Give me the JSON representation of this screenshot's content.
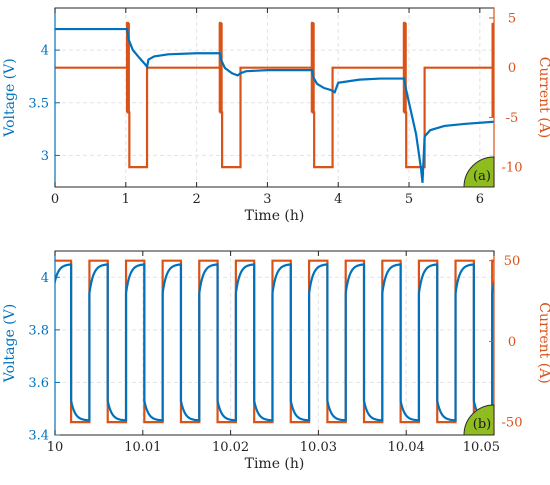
{
  "colors": {
    "voltage": "#0072bd",
    "current": "#d95319",
    "grid": "#e3e3e3",
    "axis": "#262626",
    "badge": "#8fbc1e"
  },
  "chart_data": [
    {
      "type": "line",
      "badge": "(a)",
      "xlabel": "Time (h)",
      "ylabel_left": "Voltage (V)",
      "ylabel_right": "Current (A)",
      "xlim": [
        0,
        6.2
      ],
      "ylim_left": [
        2.7,
        4.4
      ],
      "ylim_right": [
        -12,
        6
      ],
      "xticks": [
        "0",
        "1",
        "2",
        "3",
        "4",
        "5",
        "6"
      ],
      "xtick_values": [
        0,
        1,
        2,
        3,
        4,
        5,
        6
      ],
      "yticks_left": [
        "3",
        "3.5",
        "4"
      ],
      "ytick_values_left": [
        3,
        3.5,
        4
      ],
      "yticks_right": [
        "-10",
        "-5",
        "0",
        "5"
      ],
      "ytick_values_right": [
        -10,
        -5,
        0,
        5
      ],
      "grid": true,
      "series": [
        {
          "axis": "left",
          "x": [
            0,
            1.02,
            1.04,
            1.1,
            1.2,
            1.28,
            1.3,
            1.32,
            1.4,
            1.6,
            2.0,
            2.33,
            2.35,
            2.4,
            2.5,
            2.58,
            2.62,
            2.7,
            3.0,
            3.3,
            3.63,
            3.65,
            3.7,
            3.8,
            3.9,
            3.95,
            4.0,
            4.3,
            4.6,
            4.93,
            4.96,
            5.0,
            5.1,
            5.17,
            5.19,
            5.22,
            5.3,
            5.5,
            5.8,
            6.2
          ],
          "y": [
            4.2,
            4.2,
            4.1,
            4.0,
            3.92,
            3.86,
            3.84,
            3.91,
            3.94,
            3.96,
            3.97,
            3.97,
            3.9,
            3.83,
            3.78,
            3.76,
            3.78,
            3.8,
            3.81,
            3.81,
            3.81,
            3.74,
            3.68,
            3.64,
            3.62,
            3.6,
            3.69,
            3.72,
            3.73,
            3.73,
            3.62,
            3.5,
            3.2,
            2.87,
            2.74,
            3.18,
            3.24,
            3.28,
            3.3,
            3.32
          ]
        },
        {
          "axis": "right",
          "x": [
            0,
            1.02,
            1.02,
            1.03,
            1.03,
            1.05,
            1.05,
            1.3,
            1.3,
            2.33,
            2.33,
            2.34,
            2.34,
            2.36,
            2.36,
            2.62,
            2.62,
            3.63,
            3.63,
            3.64,
            3.64,
            3.66,
            3.66,
            3.92,
            3.92,
            4.93,
            4.93,
            4.94,
            4.94,
            4.96,
            4.96,
            5.22,
            5.22,
            6.2,
            6.2,
            6.2,
            6.2
          ],
          "y": [
            0,
            0,
            4.5,
            4.5,
            -4.5,
            -4.5,
            -10,
            -10,
            0,
            0,
            4.5,
            4.5,
            -4.5,
            -4.5,
            -10,
            -10,
            0,
            0,
            4.5,
            4.5,
            -4.5,
            -4.5,
            -10,
            -10,
            0,
            0,
            4.5,
            4.5,
            -4.5,
            -4.5,
            -10,
            -10,
            0,
            0,
            4.5,
            -5,
            0
          ]
        }
      ]
    },
    {
      "type": "line",
      "badge": "(b)",
      "xlabel": "Time (h)",
      "ylabel_left": "Voltage (V)",
      "ylabel_right": "Current (A)",
      "xlim": [
        10,
        10.05
      ],
      "ylim_left": [
        3.4,
        4.1
      ],
      "ylim_right": [
        -58,
        56
      ],
      "xticks": [
        "10",
        "10.01",
        "10.02",
        "10.03",
        "10.04",
        "10.05"
      ],
      "xtick_values": [
        10,
        10.01,
        10.02,
        10.03,
        10.04,
        10.05
      ],
      "yticks_left": [
        "3.4",
        "3.6",
        "3.8",
        "4"
      ],
      "ytick_values_left": [
        3.4,
        3.6,
        3.8,
        4
      ],
      "yticks_right": [
        "-50",
        "0",
        "50"
      ],
      "ytick_values_right": [
        -50,
        0,
        50
      ],
      "grid": true,
      "period": 0.00417,
      "start": 9.99975,
      "current_amplitude": 50,
      "series": [
        {
          "axis": "left",
          "kind": "square-voltage",
          "low": 3.455,
          "high": 4.05,
          "jump_low": 3.53,
          "jump_high": 3.94
        },
        {
          "axis": "right",
          "kind": "square-current"
        }
      ]
    }
  ]
}
